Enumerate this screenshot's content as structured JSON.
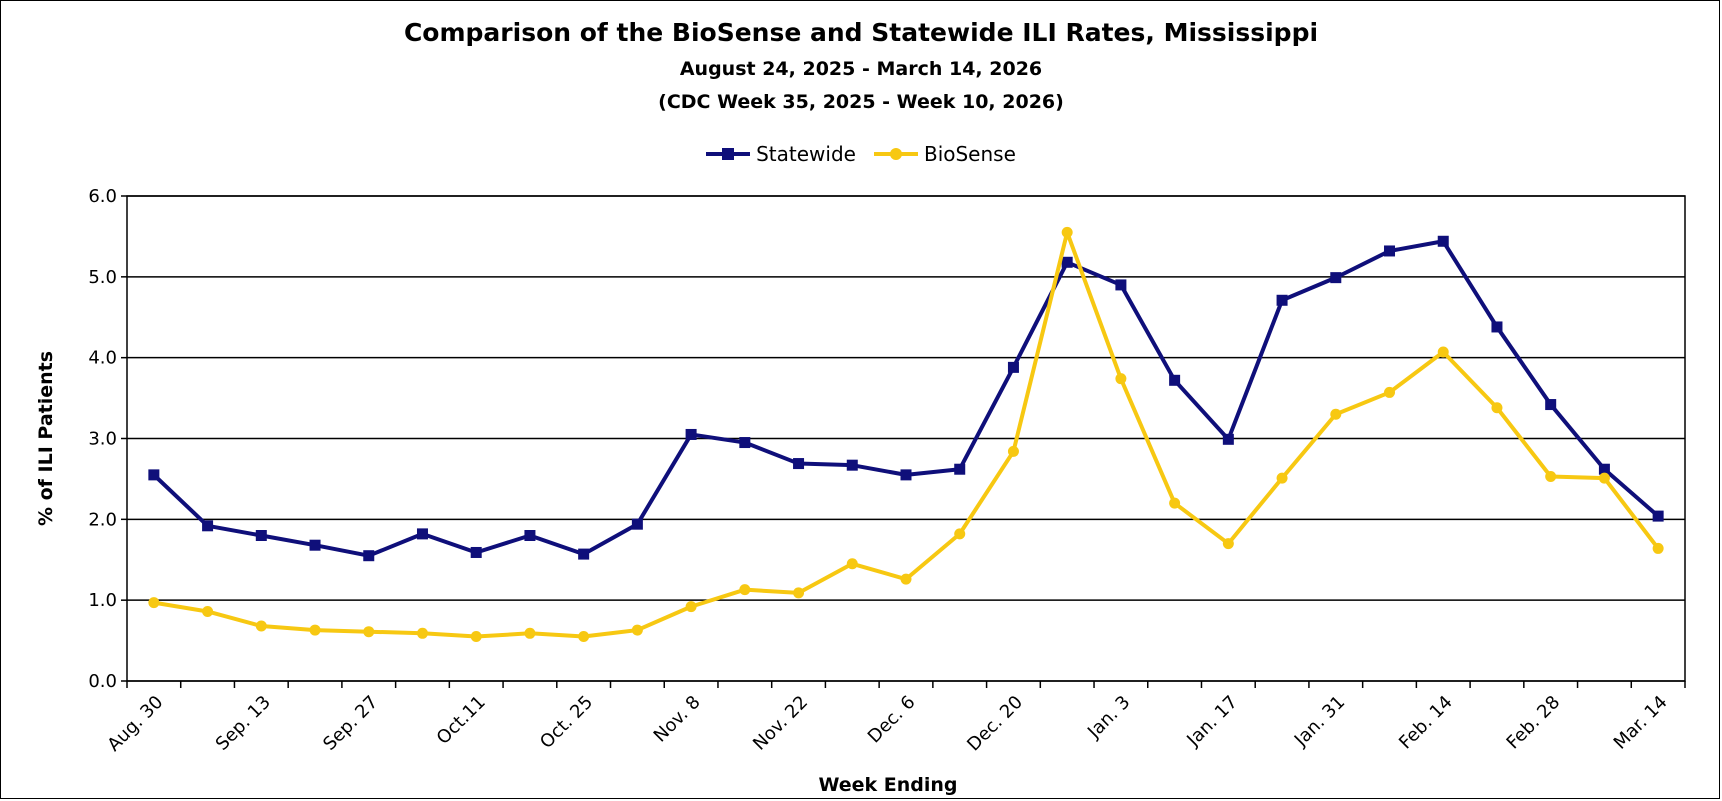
{
  "page": {
    "title": "Comparison of the BioSense and Statewide ILI Rates, Mississippi",
    "subtitle1": "August 24, 2025 - March 14, 2026",
    "subtitle2": "(CDC Week 35, 2025 - Week 10, 2026)"
  },
  "colors": {
    "statewide": "#0f0f7a",
    "biosense": "#f7c812",
    "grid": "#000000"
  },
  "chart_data": {
    "type": "line",
    "title": "Comparison of the BioSense and Statewide ILI Rates, Mississippi",
    "xlabel": "Week Ending",
    "ylabel": "% of ILI Patients",
    "ylim": [
      0,
      6
    ],
    "yticks": [
      "0.0",
      "1.0",
      "2.0",
      "3.0",
      "4.0",
      "5.0",
      "6.0"
    ],
    "grid": true,
    "legend_position": "top-center",
    "x_tick_labels": [
      "Aug. 30",
      "Sep. 13",
      "Sep. 27",
      "Oct.11",
      "Oct. 25",
      "Nov. 8",
      "Nov. 22",
      "Dec. 6",
      "Dec. 20",
      "Jan. 3",
      "Jan. 17",
      "Jan. 31",
      "Feb. 14",
      "Feb. 28",
      "Mar. 14"
    ],
    "x_weeks": [
      "Aug. 30",
      "Sep. 6",
      "Sep. 13",
      "Sep. 20",
      "Sep. 27",
      "Oct. 4",
      "Oct.11",
      "Oct. 18",
      "Oct. 25",
      "Nov. 1",
      "Nov. 8",
      "Nov. 15",
      "Nov. 22",
      "Nov. 29",
      "Dec. 6",
      "Dec. 13",
      "Dec. 20",
      "Dec. 27",
      "Jan. 3",
      "Jan. 10",
      "Jan. 17",
      "Jan. 24",
      "Jan. 31",
      "Feb. 7",
      "Feb. 14",
      "Feb. 21",
      "Feb. 28",
      "Mar. 7",
      "Mar. 14"
    ],
    "series": [
      {
        "name": "Statewide",
        "marker": "square",
        "values": [
          2.55,
          1.92,
          1.8,
          1.68,
          1.55,
          1.82,
          1.59,
          1.8,
          1.57,
          1.94,
          3.05,
          2.95,
          2.69,
          2.67,
          2.55,
          2.62,
          3.88,
          5.18,
          4.9,
          3.72,
          2.99,
          4.71,
          4.99,
          5.32,
          5.44,
          4.38,
          3.42,
          2.62,
          2.04
        ]
      },
      {
        "name": "BioSense",
        "marker": "circle",
        "values": [
          0.97,
          0.86,
          0.68,
          0.63,
          0.61,
          0.59,
          0.55,
          0.59,
          0.55,
          0.63,
          0.92,
          1.13,
          1.09,
          1.45,
          1.26,
          1.82,
          2.84,
          5.55,
          3.74,
          2.2,
          1.7,
          2.51,
          3.3,
          3.57,
          4.07,
          3.38,
          2.53,
          2.51,
          1.64
        ]
      }
    ]
  }
}
